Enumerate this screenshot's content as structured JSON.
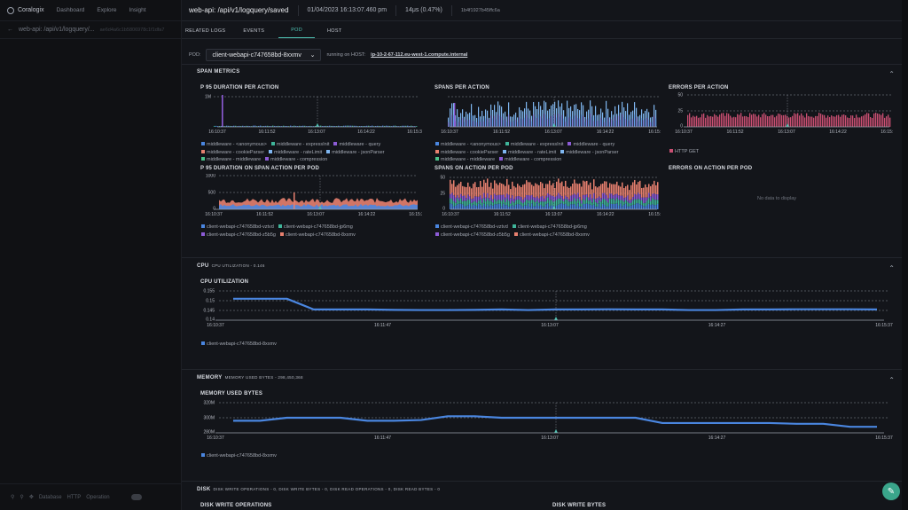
{
  "left": {
    "logo": "Coralogix",
    "nav": [
      "Dashboard",
      "Explore",
      "Insight"
    ],
    "breadcrumb": "web-api: /api/v1/logquery/...",
    "hash": "ae6d4a6c1b5806978c1f1dfa7",
    "footer": [
      "Database",
      "HTTP",
      "Operation"
    ]
  },
  "header": {
    "title": "web-api: /api/v1/logquery/saved",
    "timestamp": "01/04/2023 16:13:07.460 pm",
    "duration": "14μs (0.47%)",
    "trace_id": "1b4f1927b45ffc6a"
  },
  "tabs": [
    "RELATED LOGS",
    "EVENTS",
    "POD",
    "HOST"
  ],
  "active_tab": "POD",
  "pod": {
    "label": "POD:",
    "selected": "client-webapi-c747658bd-8xxmv",
    "running_on": "running on HOST:",
    "host": "ip-10-2-67-112.eu-west-1.compute.internal"
  },
  "sections": {
    "span_metrics": "SPAN METRICS",
    "cpu": "CPU",
    "cpu_sub": "CPU UTILIZATION - 0.146",
    "memory": "MEMORY",
    "memory_sub": "MEMORY USED BYTES - 298,450,368",
    "disk": "DISK",
    "disk_sub": "DISK WRITE OPERATIONS - 0, DISK WRITE BYTES - 0, DISK READ OPERATIONS - 0, DISK READ BYTES - 0"
  },
  "charts": {
    "p95": "P 95 DURATION PER ACTION",
    "spans": "SPANS PER ACTION",
    "errors": "ERRORS PER ACTION",
    "p95_pod": "P 95 DURATION ON SPAN ACTION PER POD",
    "spans_pod": "SPANS ON ACTION PER POD",
    "errors_pod": "ERRORS ON ACTION PER POD",
    "no_data": "No data to display",
    "cpu": "CPU UTILIZATION",
    "mem": "MEMORY USED BYTES",
    "disk_write": "DISK WRITE OPERATIONS",
    "disk_bytes": "DISK WRITE BYTES"
  },
  "legends": {
    "actions": [
      "middleware - <anonymous>",
      "middleware - expressInit",
      "middleware - query",
      "middleware - cookieParser",
      "middleware - rateLimit",
      "middleware - jsonParser",
      "middleware - middleware",
      "middleware - compression"
    ],
    "errors": [
      "HTTP GET"
    ],
    "pods": [
      "client-webapi-c747658bd-vztvd",
      "client-webapi-c747658bd-jp6mg",
      "client-webapi-c747658bd-z5b5g",
      "client-webapi-c747658bd-8xxmv"
    ],
    "single_pod": [
      "client-webapi-c747658bd-8xxmv"
    ]
  },
  "colors": {
    "accent": "#4fc2b3",
    "blue": "#4a86e0",
    "teal": "#3fb59a",
    "purple": "#8c5bd6",
    "salmon": "#e7806f",
    "light_blue": "#7fb6f0",
    "pink": "#c94f72",
    "green": "#4bc28a"
  },
  "chart_data": [
    {
      "id": "p95",
      "type": "bar",
      "title": "P 95 DURATION PER ACTION",
      "y_ticks": [
        "1M"
      ],
      "x_ticks": [
        "16:10:37",
        "16:11:52",
        "16:13:07",
        "16:14:22",
        "16:15:37"
      ],
      "note": "single spike to ~1M near start, otherwise near zero"
    },
    {
      "id": "spans",
      "type": "bar",
      "title": "SPANS PER ACTION",
      "x_ticks": [
        "16:10:37",
        "16:11:52",
        "16:13:07",
        "16:14:22",
        "16:15:37"
      ]
    },
    {
      "id": "errors",
      "type": "bar",
      "title": "ERRORS PER ACTION",
      "y_ticks": [
        "50",
        "25",
        "0"
      ],
      "x_ticks": [
        "16:10:37",
        "16:11:52",
        "16:13:07",
        "16:14:22",
        "16:15:37"
      ]
    },
    {
      "id": "p95_pod",
      "type": "area",
      "title": "P 95 DURATION ON SPAN ACTION PER POD",
      "y_ticks": [
        "1000",
        "500",
        "0"
      ],
      "x_ticks": [
        "16:10:37",
        "16:11:52",
        "16:13:07",
        "16:14:22",
        "16:15:37"
      ]
    },
    {
      "id": "spans_pod",
      "type": "bar",
      "title": "SPANS ON ACTION PER POD",
      "y_ticks": [
        "50",
        "25",
        "0"
      ],
      "x_ticks": [
        "16:10:37",
        "16:11:52",
        "16:13:07",
        "16:14:22",
        "16:15:37"
      ]
    },
    {
      "id": "cpu",
      "type": "line",
      "title": "CPU UTILIZATION",
      "y_ticks": [
        "0.155",
        "0.15",
        "0.145",
        "0.14"
      ],
      "ylim": [
        0.14,
        0.155
      ],
      "x_ticks": [
        "16:10:37",
        "16:11:47",
        "16:13:07",
        "16:14:27",
        "16:15:37"
      ],
      "values": [
        0.151,
        0.151,
        0.151,
        0.1455,
        0.1455,
        0.1455,
        0.1453,
        0.1452,
        0.1452,
        0.1453,
        0.1455,
        0.1452,
        0.1455,
        0.1455,
        0.1456,
        0.1455,
        0.1455,
        0.1452,
        0.1452,
        0.1455,
        0.1455,
        0.1456,
        0.1456,
        0.1456,
        0.1455
      ]
    },
    {
      "id": "mem",
      "type": "line",
      "title": "MEMORY USED BYTES",
      "y_ticks": [
        "320M",
        "300M",
        "280M"
      ],
      "ylim": [
        280,
        320
      ],
      "x_ticks": [
        "16:10:37",
        "16:11:47",
        "16:13:07",
        "16:14:27",
        "16:15:37"
      ],
      "values": [
        296,
        296,
        300,
        300,
        300,
        296,
        296,
        297,
        302,
        302,
        300,
        300,
        300,
        300,
        300,
        300,
        293,
        293,
        293,
        293,
        293,
        292,
        292,
        288,
        288
      ]
    }
  ]
}
